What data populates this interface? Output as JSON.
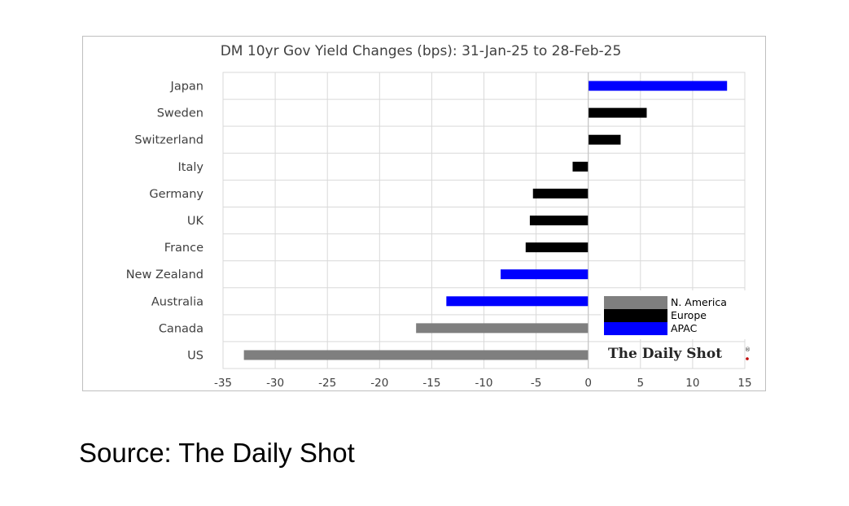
{
  "chart_data": {
    "type": "bar",
    "orientation": "horizontal",
    "title": "DM 10yr Gov Yield Changes (bps): 31-Jan-25 to 28-Feb-25",
    "xlabel": "",
    "ylabel": "",
    "xlim": [
      -35,
      15
    ],
    "xticks": [
      -35,
      -30,
      -25,
      -20,
      -15,
      -10,
      -5,
      0,
      5,
      10,
      15
    ],
    "grid": true,
    "legend_position": "bottom-right",
    "categories": [
      "Japan",
      "Sweden",
      "Switzerland",
      "Italy",
      "Germany",
      "UK",
      "France",
      "New Zealand",
      "Australia",
      "Canada",
      "US"
    ],
    "values": [
      13.3,
      5.6,
      3.1,
      -1.5,
      -5.3,
      -5.6,
      -6.0,
      -8.4,
      -13.6,
      -16.5,
      -33.0
    ],
    "groups": [
      "APAC",
      "Europe",
      "Europe",
      "Europe",
      "Europe",
      "Europe",
      "Europe",
      "APAC",
      "APAC",
      "N. America",
      "N. America"
    ],
    "legend": [
      {
        "name": "N. America",
        "color": "#7f7f7f"
      },
      {
        "name": "Europe",
        "color": "#000000"
      },
      {
        "name": "APAC",
        "color": "#0000ff"
      }
    ],
    "watermark": "The Daily Shot"
  },
  "source_note": "Source: The Daily Shot"
}
